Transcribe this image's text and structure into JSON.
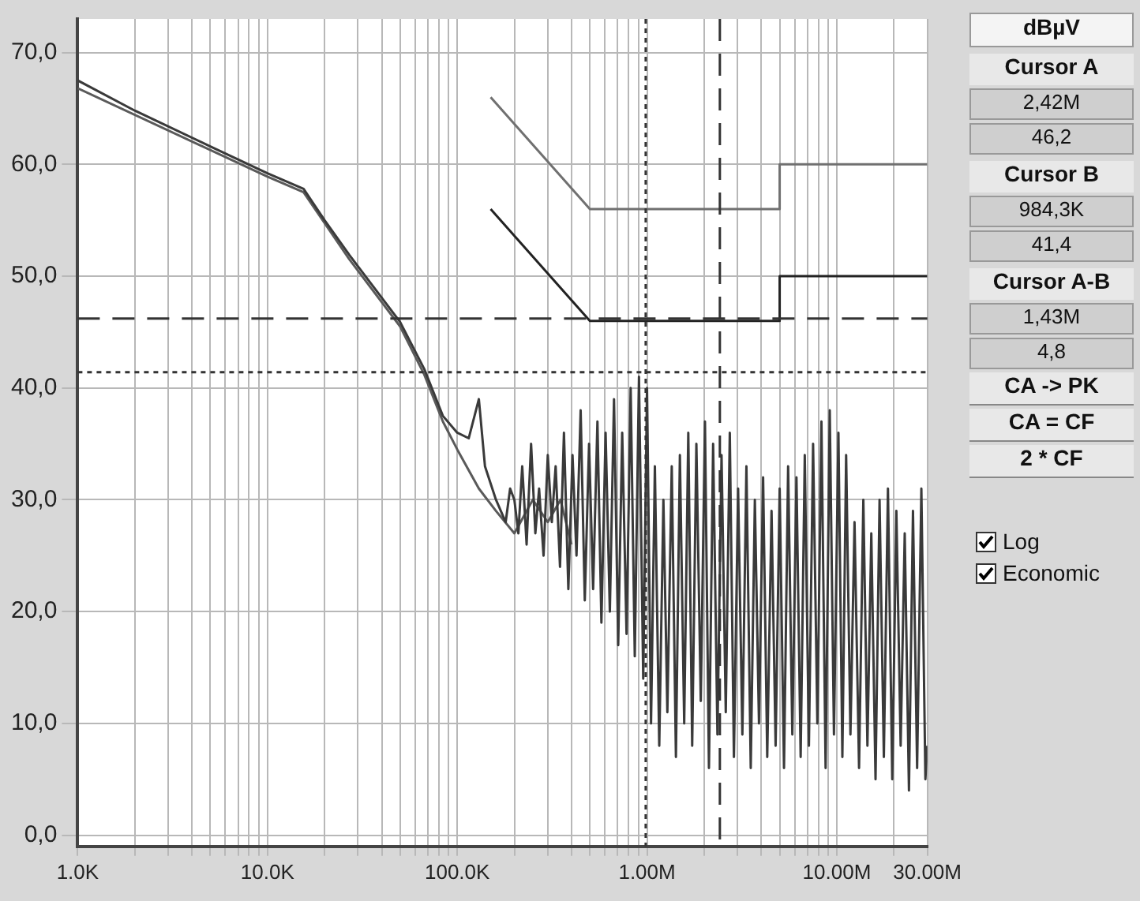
{
  "chart_data": {
    "type": "line",
    "ylabel": "dBµV",
    "log": "x",
    "grid": true,
    "legend": false,
    "marker": "none",
    "xlim": [
      1000,
      30000000
    ],
    "ylim": [
      -1,
      73
    ],
    "xticks": [
      {
        "value": 1000,
        "label": "1.0K"
      },
      {
        "value": 2000,
        "label": null
      },
      {
        "value": 3000,
        "label": null
      },
      {
        "value": 4000,
        "label": null
      },
      {
        "value": 5000,
        "label": null
      },
      {
        "value": 6000,
        "label": null
      },
      {
        "value": 7000,
        "label": null
      },
      {
        "value": 8000,
        "label": null
      },
      {
        "value": 9000,
        "label": null
      },
      {
        "value": 10000,
        "label": "10.0K"
      },
      {
        "value": 20000,
        "label": null
      },
      {
        "value": 30000,
        "label": null
      },
      {
        "value": 40000,
        "label": null
      },
      {
        "value": 50000,
        "label": null
      },
      {
        "value": 60000,
        "label": null
      },
      {
        "value": 70000,
        "label": null
      },
      {
        "value": 80000,
        "label": null
      },
      {
        "value": 90000,
        "label": null
      },
      {
        "value": 100000,
        "label": "100.0K"
      },
      {
        "value": 200000,
        "label": null
      },
      {
        "value": 300000,
        "label": null
      },
      {
        "value": 400000,
        "label": null
      },
      {
        "value": 500000,
        "label": null
      },
      {
        "value": 600000,
        "label": null
      },
      {
        "value": 700000,
        "label": null
      },
      {
        "value": 800000,
        "label": null
      },
      {
        "value": 900000,
        "label": null
      },
      {
        "value": 1000000,
        "label": "1.00M"
      },
      {
        "value": 2000000,
        "label": null
      },
      {
        "value": 3000000,
        "label": null
      },
      {
        "value": 4000000,
        "label": null
      },
      {
        "value": 5000000,
        "label": null
      },
      {
        "value": 6000000,
        "label": null
      },
      {
        "value": 7000000,
        "label": null
      },
      {
        "value": 8000000,
        "label": null
      },
      {
        "value": 9000000,
        "label": null
      },
      {
        "value": 10000000,
        "label": "10.00M"
      },
      {
        "value": 20000000,
        "label": null
      },
      {
        "value": 30000000,
        "label": "30.00M"
      }
    ],
    "yticks": [
      {
        "value": 0,
        "label": "0,0"
      },
      {
        "value": 10,
        "label": "10,0"
      },
      {
        "value": 20,
        "label": "20,0"
      },
      {
        "value": 30,
        "label": "30,0"
      },
      {
        "value": 40,
        "label": "40,0"
      },
      {
        "value": 50,
        "label": "50,0"
      },
      {
        "value": 60,
        "label": "60,0"
      },
      {
        "value": 70,
        "label": "70,0"
      }
    ],
    "series": [
      {
        "color": "#3a3a3a",
        "x": [
          1000,
          2000,
          5000,
          10000,
          15500,
          20000,
          27000,
          50000,
          67000,
          84000,
          100000,
          115000,
          130000,
          140000,
          160000,
          180000,
          190000,
          200000,
          210000,
          220000,
          232000,
          245000,
          258000,
          270000,
          285000,
          300000,
          315000,
          330000,
          348000,
          365000,
          385000,
          405000,
          425000,
          447000,
          470000,
          495000,
          520000,
          548000,
          575000,
          605000,
          637000,
          670000,
          705000,
          740000,
          780000,
          820000,
          862000,
          907000,
          955000,
          1000000,
          1050000,
          1100000,
          1160000,
          1220000,
          1280000,
          1350000,
          1420000,
          1490000,
          1570000,
          1650000,
          1730000,
          1820000,
          1920000,
          2020000,
          2120000,
          2230000,
          2350000,
          2470000,
          2600000,
          2730000,
          2870000,
          3020000,
          3180000,
          3340000,
          3520000,
          3700000,
          3890000,
          4090000,
          4300000,
          4530000,
          4760000,
          5000000,
          5270000,
          5540000,
          5830000,
          6130000,
          6450000,
          6780000,
          7130000,
          7500000,
          7900000,
          8300000,
          8730000,
          9180000,
          9660000,
          10200000,
          10700000,
          11200000,
          11800000,
          12400000,
          13100000,
          13800000,
          14500000,
          15200000,
          16000000,
          16800000,
          17700000,
          18600000,
          19600000,
          20600000,
          21700000,
          22800000,
          24000000,
          25200000,
          26500000,
          27900000,
          29300000,
          30000000
        ],
        "values": [
          67.5,
          64.8,
          61.6,
          59.2,
          57.8,
          55,
          51.9,
          45.9,
          41.7,
          37.5,
          36,
          35.5,
          39,
          33,
          30,
          28,
          31,
          30,
          27,
          33,
          26,
          35,
          27,
          31,
          25,
          34,
          28,
          33,
          24,
          36,
          22,
          34,
          25,
          38,
          21,
          35,
          22,
          37,
          19,
          36,
          20,
          39,
          17,
          36,
          18,
          40,
          16,
          41,
          14,
          40,
          10,
          33,
          8,
          30,
          11,
          33,
          7,
          34,
          10,
          36,
          8,
          35,
          12,
          37,
          6,
          35,
          9,
          34,
          11,
          36,
          7,
          31,
          9,
          33,
          6,
          30,
          10,
          32,
          7,
          29,
          8,
          31,
          6,
          33,
          9,
          32,
          7,
          34,
          8,
          35,
          10,
          37,
          6,
          38,
          9,
          36,
          7,
          34,
          9,
          28,
          6,
          30,
          8,
          27,
          5,
          30,
          7,
          31,
          5,
          29,
          8,
          27,
          4,
          29,
          6,
          31,
          5,
          8
        ]
      },
      {
        "color": "#5a5a5a",
        "x": [
          1000,
          10000,
          15500,
          27000,
          50000,
          67000,
          84000,
          100000,
          130000,
          160000,
          200000,
          250000,
          300000,
          350000,
          400000
        ],
        "values": [
          66.8,
          58.9,
          57.5,
          51.5,
          45.5,
          41.2,
          37,
          34.5,
          31,
          29,
          27,
          30,
          28,
          30,
          26
        ]
      },
      {
        "color": "#707070",
        "x": [
          150000,
          500000,
          5000000,
          5000000,
          30000000
        ],
        "values": [
          66,
          56,
          56,
          60,
          60
        ]
      },
      {
        "color": "#222222",
        "x": [
          150000,
          500000,
          5000000,
          5000000,
          30000000
        ],
        "values": [
          56,
          46,
          46,
          50,
          50
        ]
      }
    ],
    "ref_lines": [
      {
        "axis": "x",
        "value": 984300,
        "line_style": "dotted",
        "color": "#333333"
      },
      {
        "axis": "x",
        "value": 2420000,
        "line_style": "dashed",
        "color": "#333333"
      },
      {
        "axis": "y",
        "value": 46.2,
        "line_style": "dashed",
        "color": "#333333"
      },
      {
        "axis": "y",
        "value": 41.4,
        "line_style": "dotted",
        "color": "#333333"
      }
    ],
    "annotations": [
      "Cursor A",
      "2,42M",
      "46,2",
      "Cursor B",
      "984,3K",
      "41,4",
      "Cursor A-B",
      "1,43M",
      "4,8",
      "CA -> PK",
      "CA = CF",
      "2 * CF",
      "Log",
      "Economic"
    ]
  }
}
